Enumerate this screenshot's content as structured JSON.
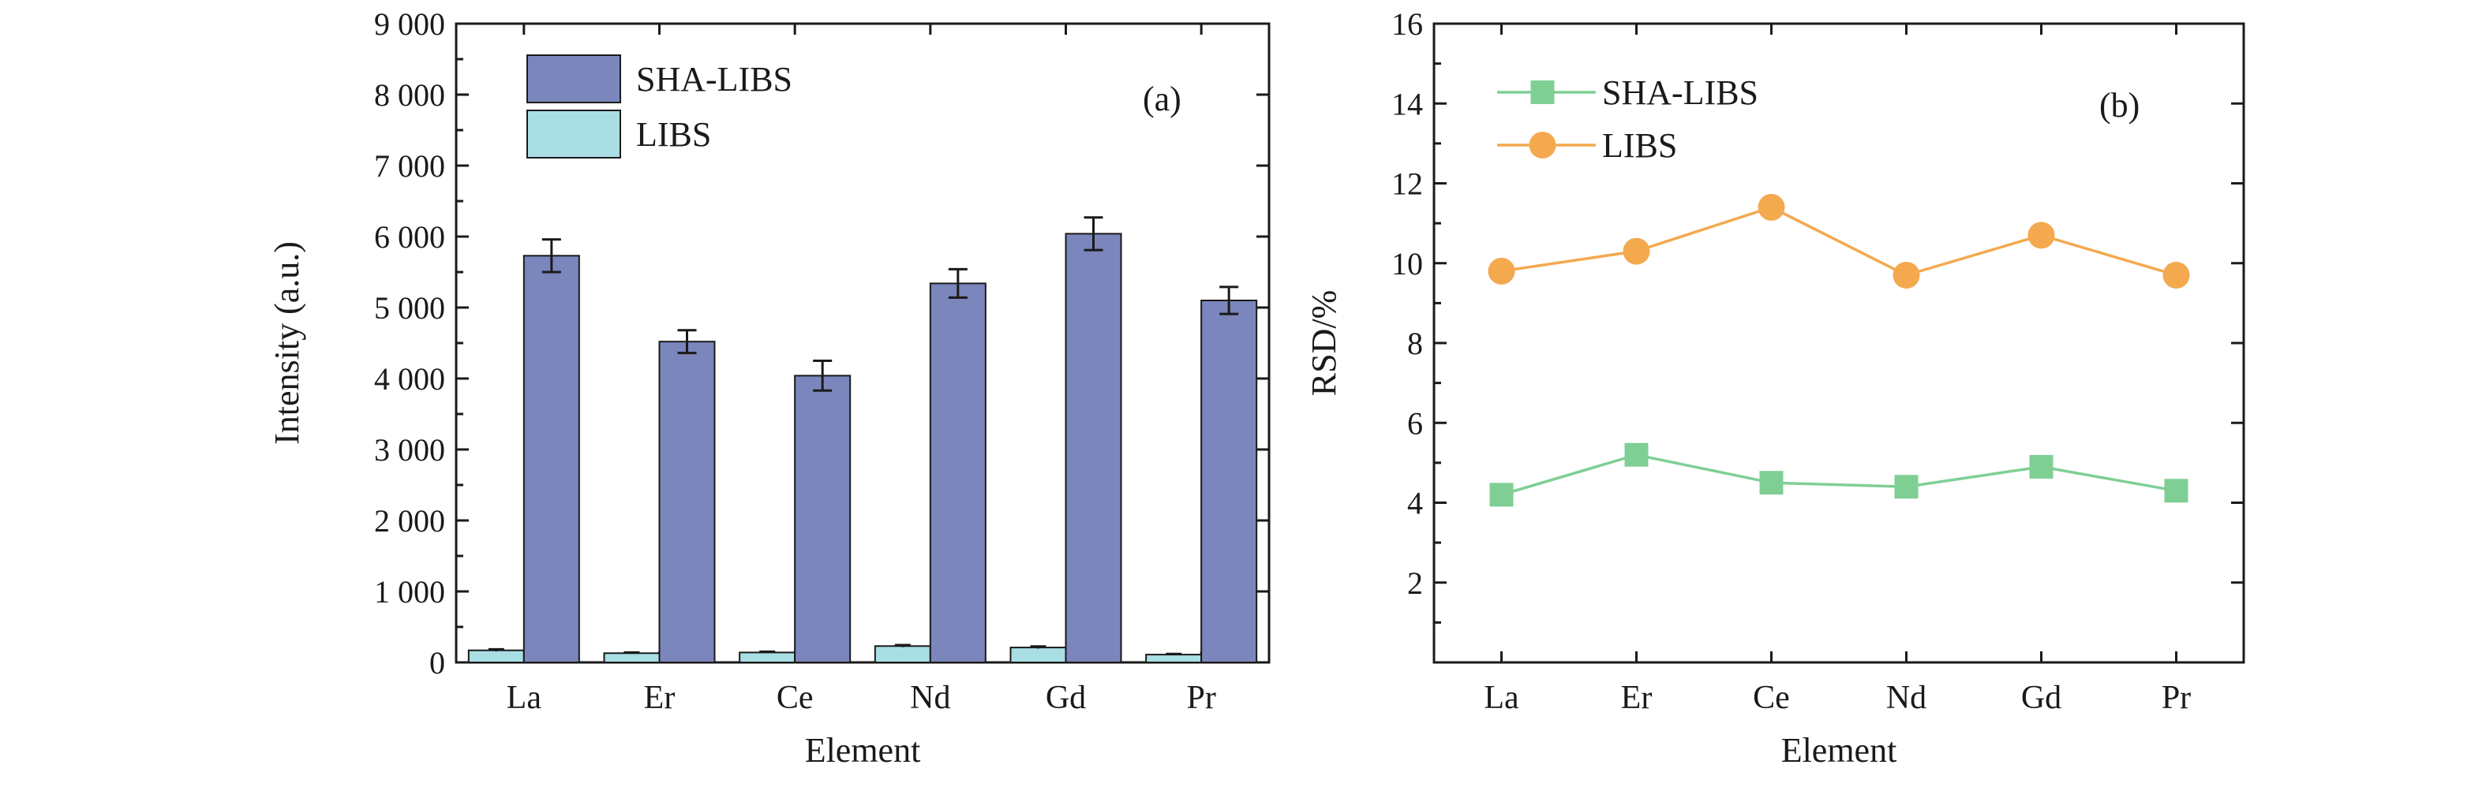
{
  "chart_data": [
    {
      "type": "bar",
      "panel_label": "(a)",
      "xlabel": "Element",
      "ylabel": "Intensity (a.u.)",
      "categories": [
        "La",
        "Er",
        "Ce",
        "Nd",
        "Gd",
        "Pr"
      ],
      "ylim": [
        0,
        9000
      ],
      "yticks": [
        0,
        1000,
        2000,
        3000,
        4000,
        5000,
        6000,
        7000,
        8000,
        9000
      ],
      "ytick_labels": [
        "0",
        "1 000",
        "2 000",
        "3 000",
        "4 000",
        "5 000",
        "6 000",
        "7 000",
        "8 000",
        "9 000"
      ],
      "legend_position": "top-left",
      "grid": false,
      "series": [
        {
          "name": "SHA-LIBS",
          "color": "#7b86bd",
          "values": [
            5730,
            4520,
            4040,
            5340,
            6040,
            5100
          ],
          "errors": [
            230,
            160,
            210,
            200,
            230,
            190
          ]
        },
        {
          "name": "LIBS",
          "color": "#a9dfe4",
          "values": [
            170,
            130,
            140,
            230,
            210,
            110
          ],
          "errors": [
            15,
            10,
            12,
            15,
            15,
            10
          ]
        }
      ]
    },
    {
      "type": "line",
      "panel_label": "(b)",
      "xlabel": "Element",
      "ylabel": "RSD/%",
      "categories": [
        "La",
        "Er",
        "Ce",
        "Nd",
        "Gd",
        "Pr"
      ],
      "ylim": [
        0,
        16
      ],
      "yticks": [
        2,
        4,
        6,
        8,
        10,
        12,
        14,
        16
      ],
      "legend_position": "top-left",
      "grid": false,
      "series": [
        {
          "name": "SHA-LIBS",
          "color": "#7fcf95",
          "marker": "square",
          "values": [
            4.2,
            5.2,
            4.5,
            4.4,
            4.9,
            4.3
          ]
        },
        {
          "name": "LIBS",
          "color": "#f4a94f",
          "marker": "circle",
          "values": [
            9.8,
            10.3,
            11.4,
            9.7,
            10.7,
            9.7
          ]
        }
      ]
    }
  ]
}
